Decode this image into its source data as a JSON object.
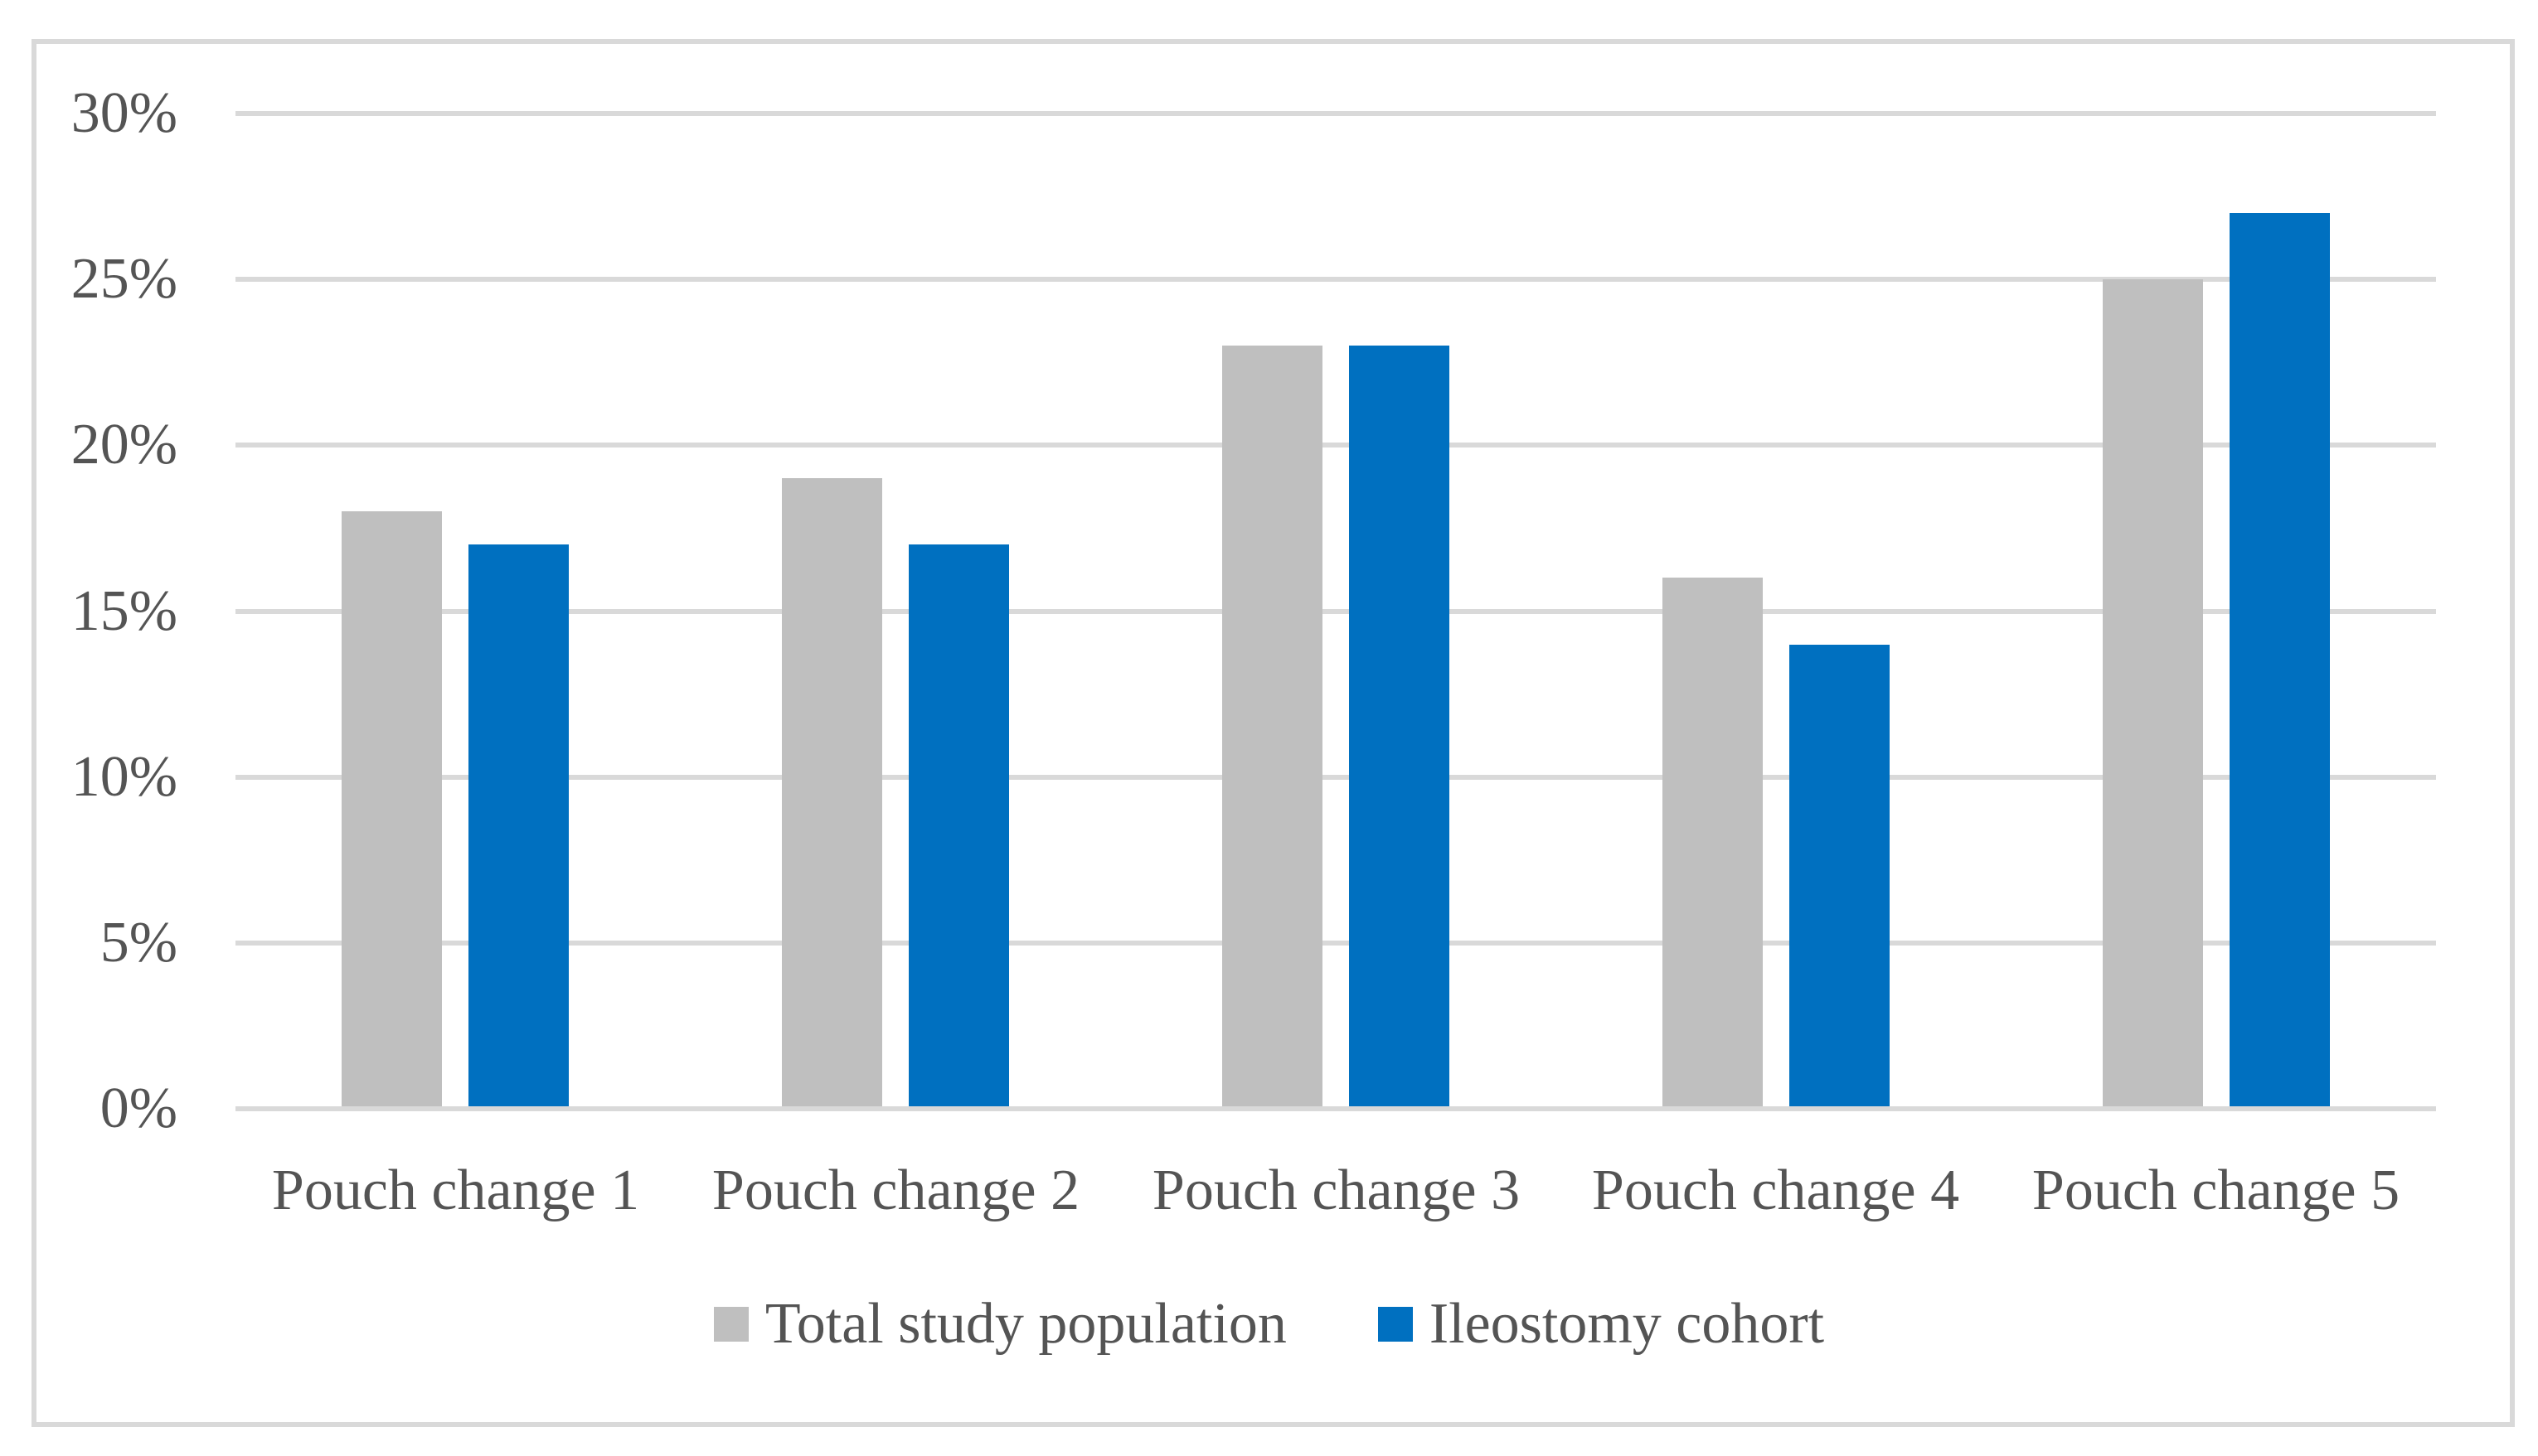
{
  "chart_data": {
    "type": "bar",
    "title": "",
    "categories": [
      "Pouch change 1",
      "Pouch change 2",
      "Pouch change 3",
      "Pouch change 4",
      "Pouch change 5"
    ],
    "series": [
      {
        "name": "Total study population",
        "color": "#BFBFBF",
        "values_percent": [
          18,
          19,
          23,
          16,
          25
        ]
      },
      {
        "name": "Ileostomy cohort",
        "color": "#0070C0",
        "values_percent": [
          17,
          17,
          23,
          14,
          27
        ]
      }
    ],
    "y_axis": {
      "min": 0,
      "max": 30,
      "step": 5,
      "tick_labels": [
        "0%",
        "5%",
        "10%",
        "15%",
        "20%",
        "25%",
        "30%"
      ],
      "unit": "percent"
    },
    "x_axis": {
      "tick_labels": [
        "Pouch change 1",
        "Pouch change 2",
        "Pouch change 3",
        "Pouch change 4",
        "Pouch change 5"
      ]
    },
    "grid": true,
    "legend_position": "bottom"
  },
  "colors": {
    "background": "#FFFFFF",
    "frame_border": "#D9D9D9",
    "gridline": "#D9D9D9",
    "text": "#545454",
    "series_gray": "#BFBFBF",
    "series_blue": "#0070C0"
  }
}
